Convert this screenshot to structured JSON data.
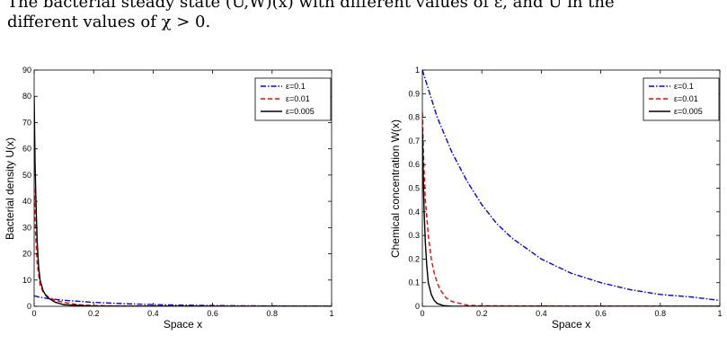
{
  "caption": {
    "line1": "The bacterial steady state (U,W)(x) with different values of ε, and U in the",
    "line2": "different values of χ > 0."
  },
  "colors": {
    "eps_0_1": "#0000ff",
    "eps_0_01": "#ff0000",
    "eps_0_005": "#000000"
  },
  "chart_data": [
    {
      "type": "line",
      "title": "",
      "xlabel": "Space x",
      "ylabel": "Bacterial density U(x)",
      "xlim": [
        0,
        1
      ],
      "ylim": [
        0,
        90
      ],
      "xticks": [
        "0",
        "0.2",
        "0.4",
        "0.6",
        "0.8",
        "1"
      ],
      "yticks": [
        "0",
        "10",
        "20",
        "30",
        "40",
        "50",
        "60",
        "70",
        "80",
        "90"
      ],
      "legend": "top-right",
      "series": [
        {
          "name": "ε=0.1",
          "style": "dashdot",
          "color": "#0000ff",
          "x": [
            0,
            0.02,
            0.05,
            0.1,
            0.2,
            0.3,
            0.4,
            0.5,
            0.6,
            0.7,
            0.8,
            0.9,
            1.0
          ],
          "y": [
            4.0,
            3.4,
            2.9,
            2.3,
            1.5,
            1.0,
            0.65,
            0.45,
            0.3,
            0.2,
            0.14,
            0.1,
            0.07
          ]
        },
        {
          "name": "ε=0.01",
          "style": "dashed",
          "color": "#ff0000",
          "x": [
            0,
            0.005,
            0.01,
            0.02,
            0.03,
            0.04,
            0.05,
            0.07,
            0.1,
            0.15,
            0.2,
            0.3,
            0.5,
            1.0
          ],
          "y": [
            45,
            27,
            16.5,
            8,
            5.5,
            4.2,
            3.4,
            2.3,
            1.5,
            0.6,
            0.3,
            0.1,
            0.02,
            0
          ]
        },
        {
          "name": "ε=0.005",
          "style": "solid",
          "color": "#000000",
          "x": [
            0,
            0.003,
            0.006,
            0.01,
            0.015,
            0.02,
            0.03,
            0.04,
            0.05,
            0.07,
            0.1,
            0.2,
            1.0
          ],
          "y": [
            80,
            55,
            40,
            25,
            15,
            10,
            6,
            4,
            3,
            1.6,
            0.6,
            0.05,
            0
          ]
        }
      ]
    },
    {
      "type": "line",
      "title": "",
      "xlabel": "Space x",
      "ylabel": "Chemical concentration W(x)",
      "xlim": [
        0,
        1
      ],
      "ylim": [
        0,
        1
      ],
      "xticks": [
        "0",
        "0.2",
        "0.4",
        "0.6",
        "0.8",
        "1"
      ],
      "yticks": [
        "0",
        "0.1",
        "0.2",
        "0.3",
        "0.4",
        "0.5",
        "0.6",
        "0.7",
        "0.8",
        "0.9",
        "1"
      ],
      "legend": "top-right",
      "series": [
        {
          "name": "ε=0.1",
          "style": "dashdot",
          "color": "#0000ff",
          "x": [
            0,
            0.05,
            0.1,
            0.15,
            0.2,
            0.25,
            0.3,
            0.4,
            0.5,
            0.6,
            0.7,
            0.8,
            0.9,
            1.0
          ],
          "y": [
            1.0,
            0.8,
            0.65,
            0.53,
            0.43,
            0.35,
            0.29,
            0.2,
            0.14,
            0.1,
            0.07,
            0.05,
            0.04,
            0.025
          ]
        },
        {
          "name": "ε=0.01",
          "style": "dashed",
          "color": "#ff0000",
          "x": [
            0,
            0.005,
            0.01,
            0.02,
            0.03,
            0.04,
            0.05,
            0.06,
            0.08,
            0.1,
            0.15,
            0.2,
            1.0
          ],
          "y": [
            0.82,
            0.6,
            0.45,
            0.3,
            0.2,
            0.14,
            0.1,
            0.07,
            0.035,
            0.02,
            0.005,
            0.002,
            0
          ]
        },
        {
          "name": "ε=0.005",
          "style": "solid",
          "color": "#000000",
          "x": [
            0,
            0.003,
            0.006,
            0.01,
            0.015,
            0.02,
            0.03,
            0.04,
            0.05,
            0.07,
            0.1,
            1.0
          ],
          "y": [
            0.75,
            0.55,
            0.4,
            0.27,
            0.17,
            0.1,
            0.05,
            0.025,
            0.012,
            0.003,
            0,
            0
          ]
        }
      ]
    }
  ]
}
